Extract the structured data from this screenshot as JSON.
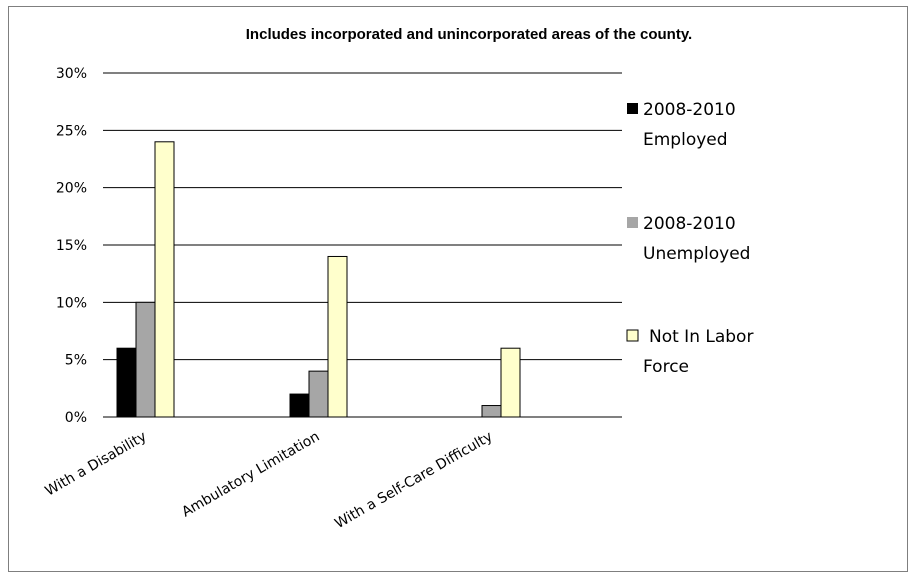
{
  "chart_data": {
    "type": "bar",
    "title": "Includes incorporated and unincorporated areas of the county.",
    "xlabel": "",
    "ylabel": "",
    "categories": [
      "With a Disability",
      "Ambulatory Limitation",
      "With a Self-Care Difficulty"
    ],
    "series": [
      {
        "name": "2008-2010 Employed",
        "legend_lines": [
          "2008-2010",
          "Employed"
        ],
        "color": "#000000",
        "values": [
          6,
          2,
          0
        ]
      },
      {
        "name": "2008-2010 Unemployed",
        "legend_lines": [
          "2008-2010",
          "Unemployed"
        ],
        "color": "#a6a6a6",
        "values": [
          10,
          4,
          1
        ]
      },
      {
        "name": "Not In Labor Force",
        "legend_lines": [
          "Not In Labor",
          "Force"
        ],
        "color": "#ffffcc",
        "values": [
          24,
          14,
          6
        ]
      }
    ],
    "ylim": [
      0,
      30
    ],
    "yticks": [
      0,
      5,
      10,
      15,
      20,
      25,
      30
    ],
    "ytick_labels": [
      "0%",
      "5%",
      "10%",
      "15%",
      "20%",
      "25%",
      "30%"
    ],
    "grid": true,
    "legend_position": "right",
    "bar_outline_color": "#000000",
    "grid_color": "#000000"
  }
}
